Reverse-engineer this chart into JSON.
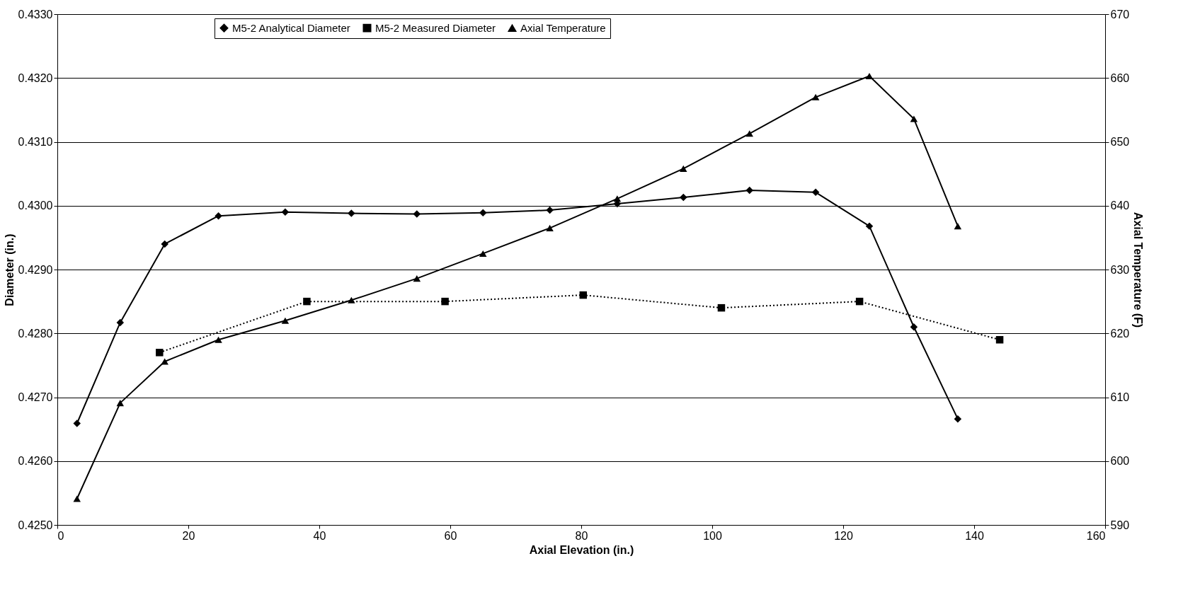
{
  "chart_data": {
    "type": "line",
    "xlabel": "Axial Elevation (in.)",
    "ylabel": "Diameter (in.)",
    "y2label": "Axial Temperature (F)",
    "xlim": [
      0,
      160
    ],
    "xticks": [
      0,
      20,
      40,
      60,
      80,
      100,
      120,
      140,
      160
    ],
    "ylim": [
      0.425,
      0.433
    ],
    "yticks": [
      {
        "value": 0.425,
        "label": "0.4250"
      },
      {
        "value": 0.426,
        "label": "0.4260"
      },
      {
        "value": 0.427,
        "label": "0.4270"
      },
      {
        "value": 0.428,
        "label": "0.4280"
      },
      {
        "value": 0.429,
        "label": "0.4290"
      },
      {
        "value": 0.43,
        "label": "0.4300"
      },
      {
        "value": 0.431,
        "label": "0.4310"
      },
      {
        "value": 0.432,
        "label": "0.4320"
      },
      {
        "value": 0.433,
        "label": "0.4330"
      }
    ],
    "y2lim": [
      590,
      670
    ],
    "y2ticks": [
      590,
      600,
      610,
      620,
      630,
      640,
      650,
      660,
      670
    ],
    "grid": "y",
    "legend": "top",
    "series": [
      {
        "name": "M5-2 Analytical Diameter",
        "color": "#000000",
        "marker": "diamond",
        "line_style": "solid",
        "x": [
          3.0,
          9.6,
          16.4,
          24.6,
          34.8,
          44.9,
          54.9,
          65.0,
          75.2,
          85.5,
          95.6,
          105.7,
          115.8,
          124.0,
          130.8,
          137.5
        ],
        "values": [
          0.42659,
          0.42817,
          0.4294,
          0.42984,
          0.4299,
          0.42988,
          0.42987,
          0.42989,
          0.42993,
          0.43003,
          0.43013,
          0.43024,
          0.43021,
          0.42968,
          0.4281,
          0.42666
        ]
      },
      {
        "name": "M5-2 Measured Diameter",
        "color": "#000000",
        "marker": "square",
        "line_style": "dotted",
        "x": [
          15.6,
          38.1,
          59.2,
          80.3,
          101.4,
          122.5,
          143.9
        ],
        "values": [
          0.4277,
          0.4285,
          0.4285,
          0.4286,
          0.4284,
          0.4285,
          0.4279
        ]
      },
      {
        "name": "Axial Temperature",
        "color": "#000000",
        "marker": "triangle",
        "line_style": "solid",
        "axis": "y2",
        "x": [
          3.0,
          9.6,
          16.4,
          24.6,
          34.8,
          44.9,
          54.9,
          65.0,
          75.2,
          85.5,
          95.6,
          105.7,
          115.8,
          124.0,
          130.8,
          137.5
        ],
        "values": [
          594.1,
          609.1,
          615.6,
          619.0,
          622.0,
          625.2,
          628.6,
          632.5,
          636.5,
          641.1,
          645.8,
          651.3,
          657.0,
          660.3,
          653.6,
          636.8
        ]
      }
    ]
  }
}
